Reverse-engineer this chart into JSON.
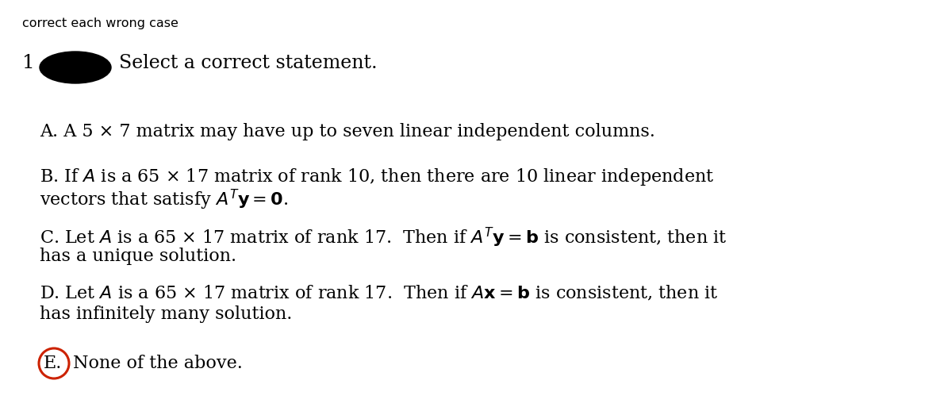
{
  "bg_color": "#ffffff",
  "text_color": "#000000",
  "circle_color": "#cc2200",
  "blob_color": "#000000",
  "header_text": "correct each wrong case",
  "header_fontsize": 11.5,
  "question_number": "1",
  "question_title": "Select a correct statement.",
  "question_fontsize": 17,
  "main_fontsize": 16,
  "option_A_line1": "A. A 5 × 7 matrix may have up to seven linear independent columns.",
  "option_B_line1": "B. If $A$ is a 65 × 17 matrix of rank 10, then there are 10 linear independent",
  "option_B_line2": "vectors that satisfy $A^T\\mathbf{y} = \\mathbf{0}$.",
  "option_C_line1": "C. Let $A$ is a 65 × 17 matrix of rank 17.  Then if $A^T\\mathbf{y} = \\mathbf{b}$ is consistent, then it",
  "option_C_line2": "has a unique solution.",
  "option_D_line1": "D. Let $A$ is a 65 × 17 matrix of rank 17.  Then if $A\\mathbf{x} = \\mathbf{b}$ is consistent, then it",
  "option_D_line2": "has infinitely many solution.",
  "option_E_text": "None of the above.",
  "option_E_label": "E."
}
